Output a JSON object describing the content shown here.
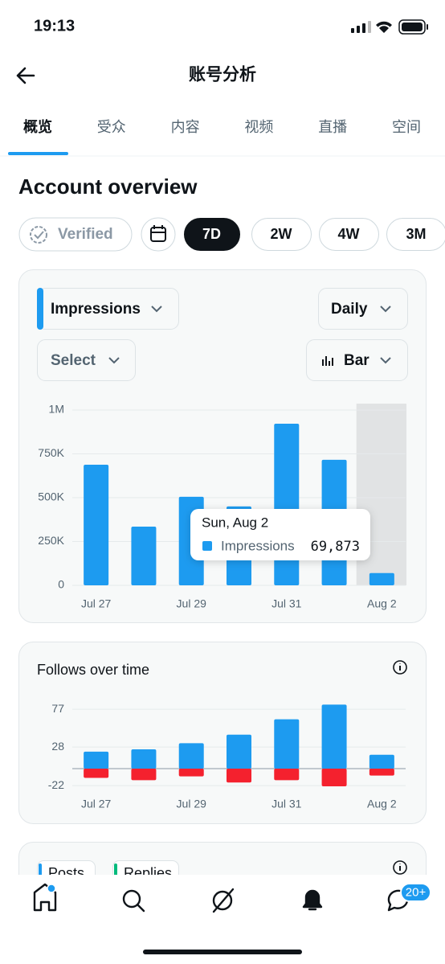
{
  "status_bar": {
    "time": "19:13"
  },
  "header": {
    "title": "账号分析"
  },
  "tabs": {
    "items": [
      "概览",
      "受众",
      "内容",
      "视频",
      "直播",
      "空间"
    ],
    "active": 0
  },
  "section_title": "Account overview",
  "filters": {
    "verified": "Verified",
    "ranges": [
      "7D",
      "2W",
      "4W",
      "3M"
    ],
    "active": 0
  },
  "impressions_card": {
    "metric": "Impressions",
    "interval": "Daily",
    "compare": "Select",
    "chart_style": "Bar"
  },
  "chart_data": [
    {
      "type": "bar",
      "categories": [
        "Jul 27",
        null,
        "Jul 29",
        null,
        "Jul 31",
        null,
        "Aug 2"
      ],
      "series": [
        {
          "name": "Impressions",
          "color": "#1d9bf0",
          "values": [
            688000,
            335000,
            505000,
            450000,
            922000,
            716000,
            69873
          ],
          "value_labels": [
            null,
            null,
            null,
            null,
            null,
            null,
            "69,873"
          ]
        }
      ],
      "ylim": [
        0,
        1000000
      ],
      "yticks": [
        0,
        {
          "value": 250000,
          "label": "250K"
        },
        {
          "value": 500000,
          "label": "500K"
        },
        {
          "value": 750000,
          "label": "750K"
        },
        {
          "value": 1000000,
          "label": "1M"
        }
      ],
      "grid": true,
      "tooltip": {
        "title": "Sun, Aug 2",
        "index": 6
      }
    },
    {
      "type": "bar",
      "title": "Follows over time",
      "categories": [
        "Jul 27",
        null,
        "Jul 29",
        null,
        "Jul 31",
        null,
        "Aug 2"
      ],
      "series": [
        {
          "color": "#1d9bf0",
          "values": [
            22,
            25,
            33,
            44,
            64,
            83,
            18
          ]
        },
        {
          "color": "#f4212e",
          "values": [
            -12,
            -15,
            -10,
            -18,
            -15,
            -23,
            -9
          ]
        }
      ],
      "ylim": [
        -24,
        84
      ],
      "yticks": [
        -22,
        28,
        77
      ],
      "grid": true
    }
  ],
  "next_card": {
    "chips": [
      "Posts",
      "Replies"
    ]
  },
  "nav": {
    "badge": "20+"
  }
}
